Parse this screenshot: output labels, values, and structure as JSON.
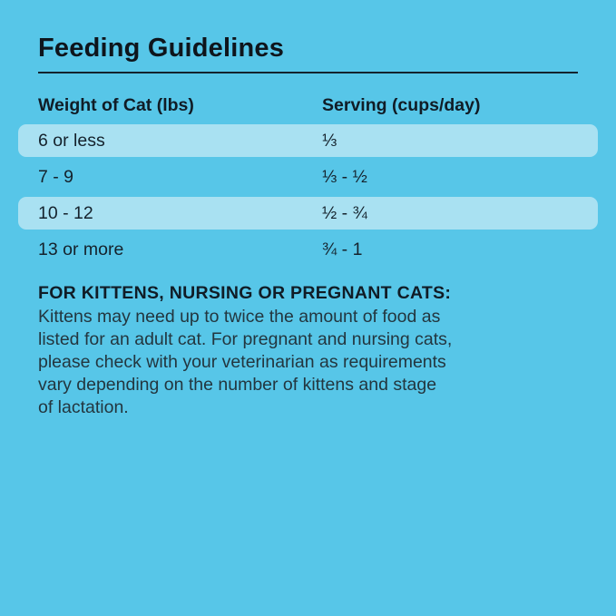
{
  "page": {
    "background_color": "#57C6E8",
    "highlight_color": "#A9E1F2",
    "text_color": "#15222C"
  },
  "title": "Feeding Guidelines",
  "table": {
    "columns": {
      "weight": "Weight of Cat (lbs)",
      "serving": "Serving (cups/day)"
    },
    "rows": [
      {
        "weight": "6 or less",
        "serving": "⅓",
        "highlighted": true
      },
      {
        "weight": "7 - 9",
        "serving": "⅓ - ½",
        "highlighted": false
      },
      {
        "weight": "10 - 12",
        "serving": "½ - ¾",
        "highlighted": true
      },
      {
        "weight": "13 or more",
        "serving": "¾ - 1",
        "highlighted": false
      }
    ]
  },
  "note": {
    "heading": "FOR KITTENS, NURSING OR PREGNANT CATS:",
    "lines": [
      "Kittens may need up to twice the amount of food as",
      "listed for an adult cat. For pregnant and nursing cats,",
      "please check with your veterinarian as requirements",
      "vary depending on the number of kittens and stage",
      "of lactation."
    ]
  }
}
